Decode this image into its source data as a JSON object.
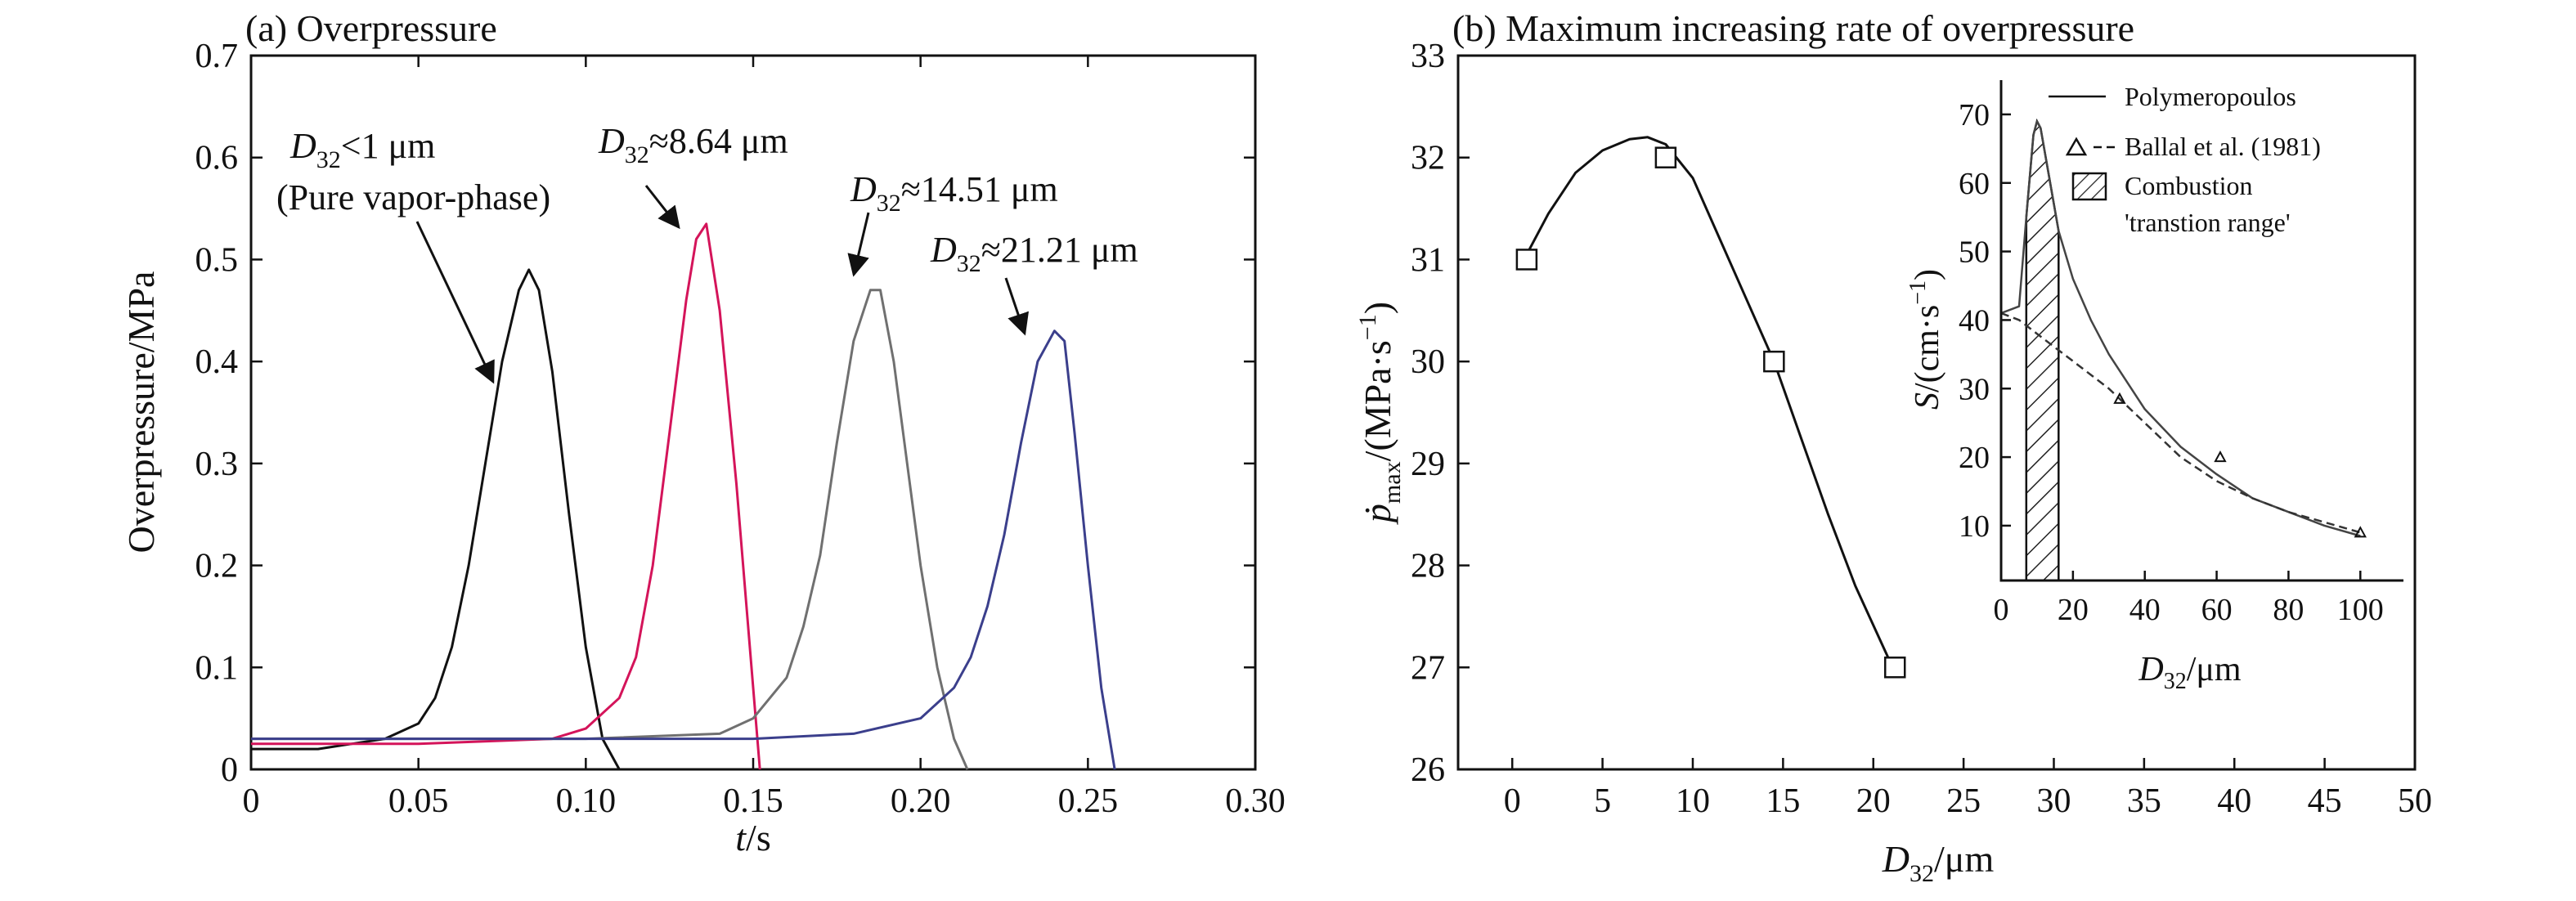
{
  "chart_data": [
    {
      "type": "line",
      "title": "(a) Overpressure",
      "xlabel_var": "t",
      "xlabel_unit": "/s",
      "ylabel": "Overpressure/MPa",
      "xlim": [
        0,
        0.3
      ],
      "ylim": [
        0,
        0.7
      ],
      "xticks": [
        0,
        0.05,
        0.1,
        0.15,
        0.2,
        0.25,
        0.3
      ],
      "xtick_labels": [
        "0",
        "0.05",
        "0.10",
        "0.15",
        "0.20",
        "0.25",
        "0.30"
      ],
      "yticks": [
        0,
        0.1,
        0.2,
        0.3,
        0.4,
        0.5,
        0.6,
        0.7
      ],
      "ytick_labels": [
        "0",
        "0.1",
        "0.2",
        "0.3",
        "0.4",
        "0.5",
        "0.6",
        "0.7"
      ],
      "series": [
        {
          "label_parts": [
            "D",
            "32",
            "<1 μm"
          ],
          "label_note": "(Pure vapor-phase)",
          "color": "#111111",
          "x": [
            0.0,
            0.02,
            0.03,
            0.04,
            0.05,
            0.055,
            0.06,
            0.065,
            0.07,
            0.075,
            0.08,
            0.083,
            0.086,
            0.09,
            0.095,
            0.1,
            0.105,
            0.11
          ],
          "y": [
            0.02,
            0.02,
            0.025,
            0.03,
            0.045,
            0.07,
            0.12,
            0.2,
            0.3,
            0.4,
            0.47,
            0.49,
            0.47,
            0.39,
            0.25,
            0.12,
            0.03,
            0.0
          ]
        },
        {
          "label_parts": [
            "D",
            "32",
            "≈8.64 μm"
          ],
          "color": "#d4145a",
          "x": [
            0.0,
            0.05,
            0.09,
            0.1,
            0.11,
            0.115,
            0.12,
            0.125,
            0.13,
            0.133,
            0.136,
            0.14,
            0.145,
            0.15,
            0.152
          ],
          "y": [
            0.025,
            0.025,
            0.03,
            0.04,
            0.07,
            0.11,
            0.2,
            0.33,
            0.46,
            0.52,
            0.535,
            0.45,
            0.28,
            0.08,
            0.0
          ]
        },
        {
          "label_parts": [
            "D",
            "32",
            "≈14.51 μm"
          ],
          "color": "#707070",
          "x": [
            0.0,
            0.05,
            0.1,
            0.14,
            0.15,
            0.16,
            0.165,
            0.17,
            0.175,
            0.18,
            0.185,
            0.188,
            0.192,
            0.196,
            0.2,
            0.205,
            0.21,
            0.214
          ],
          "y": [
            0.03,
            0.03,
            0.03,
            0.035,
            0.05,
            0.09,
            0.14,
            0.21,
            0.32,
            0.42,
            0.47,
            0.47,
            0.4,
            0.3,
            0.2,
            0.1,
            0.03,
            0.0
          ]
        },
        {
          "label_parts": [
            "D",
            "32",
            "≈21.21 μm"
          ],
          "color": "#3b3f8c",
          "x": [
            0.0,
            0.05,
            0.1,
            0.15,
            0.18,
            0.2,
            0.21,
            0.215,
            0.22,
            0.225,
            0.23,
            0.235,
            0.24,
            0.243,
            0.246,
            0.25,
            0.254,
            0.258
          ],
          "y": [
            0.03,
            0.03,
            0.03,
            0.03,
            0.035,
            0.05,
            0.08,
            0.11,
            0.16,
            0.23,
            0.32,
            0.4,
            0.43,
            0.42,
            0.33,
            0.2,
            0.08,
            0.0
          ]
        }
      ]
    },
    {
      "type": "line",
      "title": "(b) Maximum increasing rate of overpressure",
      "xlabel_var": "D",
      "xlabel_sub": "32",
      "xlabel_unit": "/μm",
      "ylabel_var": "ṗ",
      "ylabel_sub": "max",
      "ylabel_unit": "/(MPa·s",
      "ylabel_exp": "−1",
      "ylabel_close": ")",
      "xlim": [
        -3,
        50
      ],
      "ylim": [
        26,
        33
      ],
      "xticks": [
        0,
        5,
        10,
        15,
        20,
        25,
        30,
        35,
        40,
        45,
        50
      ],
      "xtick_labels": [
        "0",
        "5",
        "10",
        "15",
        "20",
        "25",
        "30",
        "35",
        "40",
        "45",
        "50"
      ],
      "yticks": [
        26,
        27,
        28,
        29,
        30,
        31,
        32,
        33
      ],
      "ytick_labels": [
        "26",
        "27",
        "28",
        "29",
        "30",
        "31",
        "32",
        "33"
      ],
      "points": {
        "x": [
          0.8,
          8.5,
          14.5,
          21.2
        ],
        "y": [
          31,
          32,
          30,
          27
        ]
      },
      "fit_curve": {
        "x": [
          0.8,
          2,
          3.5,
          5,
          6.5,
          7.5,
          8.5,
          10,
          11.5,
          13,
          14.5,
          16,
          17.5,
          19,
          21.2
        ],
        "y": [
          31.05,
          31.45,
          31.85,
          32.07,
          32.18,
          32.2,
          32.13,
          31.8,
          31.2,
          30.6,
          30.0,
          29.25,
          28.5,
          27.8,
          26.95
        ]
      },
      "inset": {
        "xlabel_var": "D",
        "xlabel_sub": "32",
        "xlabel_unit": "/μm",
        "ylabel_var": "S",
        "ylabel_unit": "/(cm·s",
        "ylabel_exp": "−1",
        "ylabel_close": ")",
        "xlim": [
          0,
          112
        ],
        "ylim": [
          2,
          75
        ],
        "xticks": [
          0,
          20,
          40,
          60,
          80,
          100
        ],
        "xtick_labels": [
          "0",
          "20",
          "40",
          "60",
          "80",
          "100"
        ],
        "yticks": [
          10,
          20,
          30,
          40,
          50,
          60,
          70
        ],
        "ytick_labels": [
          "10",
          "20",
          "30",
          "40",
          "50",
          "60",
          "70"
        ],
        "legend": [
          "Polymeropoulos",
          "Ballal et al. (1981)",
          "Combustion",
          "'transtion range'"
        ],
        "solid": {
          "x": [
            0,
            5,
            7,
            9,
            10,
            11,
            13,
            16,
            20,
            25,
            30,
            40,
            50,
            60,
            70,
            80,
            90,
            100
          ],
          "y": [
            41,
            42,
            55,
            67,
            69,
            68,
            62,
            53,
            46,
            40,
            35,
            27,
            21.5,
            17.5,
            14,
            12,
            10,
            8.5
          ]
        },
        "dashed": {
          "x": [
            0,
            5,
            10,
            15,
            20,
            25,
            30,
            40,
            50,
            60,
            70,
            80,
            90,
            100
          ],
          "y": [
            41,
            40,
            38,
            36,
            34,
            32,
            30,
            25,
            20,
            16.5,
            14,
            12,
            10.5,
            9
          ]
        },
        "triangles": {
          "x": [
            33,
            61,
            100
          ],
          "y": [
            28.5,
            20,
            9
          ]
        },
        "hatch_range": [
          7,
          16
        ]
      }
    }
  ]
}
